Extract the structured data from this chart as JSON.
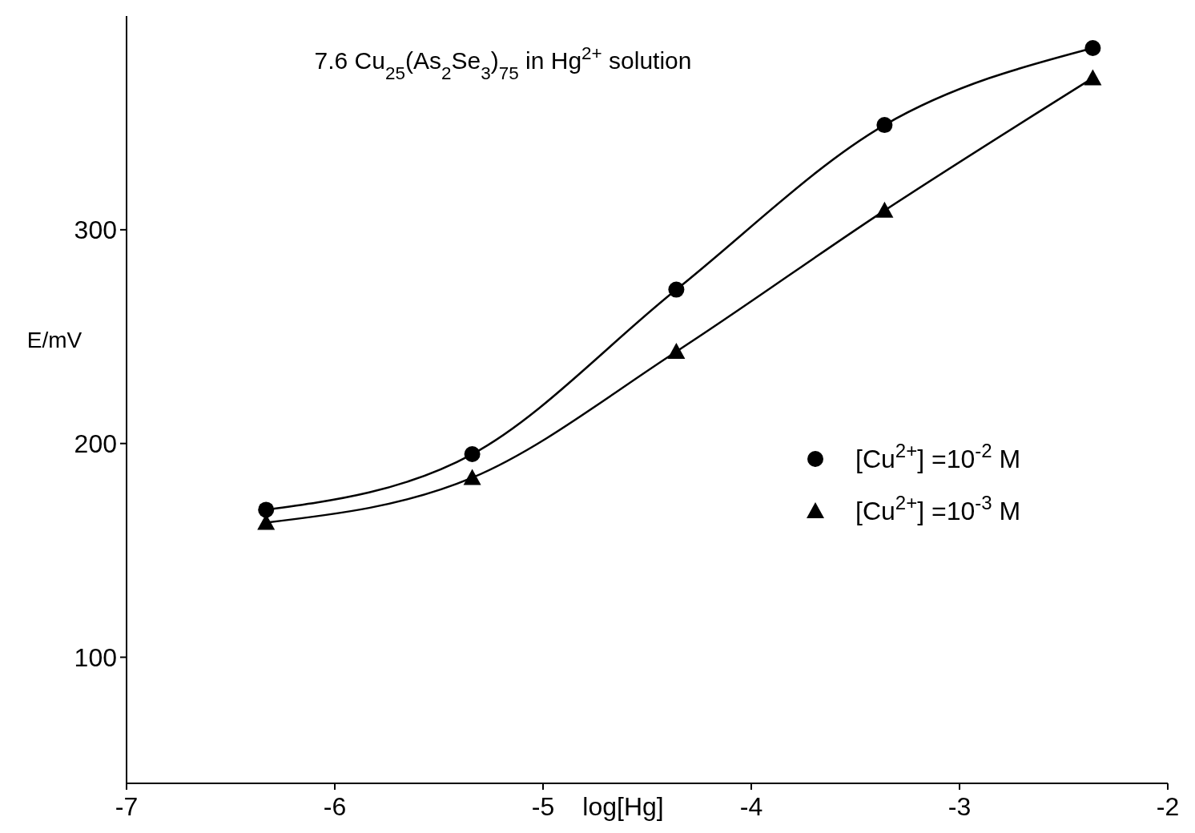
{
  "chart_data": {
    "type": "line",
    "title": "7.6 Cu$_{25}$(As$_{2}$Se$_{3}$)$_{75}$ in Hg$^{2+}$ solution",
    "xlabel": "log[Hg]",
    "ylabel": "E/mV",
    "x": [
      -6.33,
      -5.34,
      -4.36,
      -3.36,
      -2.36
    ],
    "series": [
      {
        "name": "[Cu$^{2+}$] =10$^{-2}$ M",
        "color": "#000000",
        "marker": "circle",
        "values": [
          169,
          195,
          272,
          349,
          385
        ]
      },
      {
        "name": "[Cu$^{2+}$] =10$^{-3}$ M",
        "color": "#000000",
        "marker": "triangle",
        "values": [
          163,
          184,
          243,
          309,
          371
        ]
      }
    ],
    "xlim": [
      -7,
      -2
    ],
    "xticks": [
      -7,
      -6,
      -5,
      -4,
      -3,
      -2
    ],
    "ylim": [
      41,
      400
    ],
    "yticks": [
      100,
      200,
      300
    ],
    "grid": false,
    "legend": "right",
    "line_style": "solid"
  }
}
